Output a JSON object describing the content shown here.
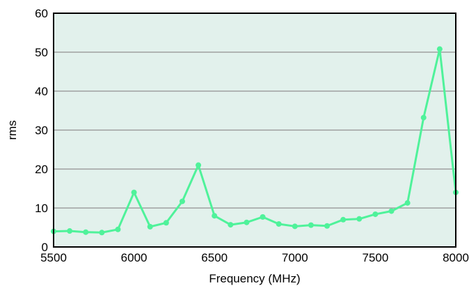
{
  "chart_data": {
    "type": "line",
    "title": "",
    "xlabel": "Frequency (MHz)",
    "ylabel": "rms",
    "xlim": [
      5500,
      8000
    ],
    "ylim": [
      0,
      60
    ],
    "xticks": [
      5500,
      6000,
      6500,
      7000,
      7500,
      8000
    ],
    "yticks": [
      0,
      10,
      20,
      30,
      40,
      50,
      60
    ],
    "grid": "horizontal",
    "series": [
      {
        "x": [
          5500,
          5600,
          5700,
          5800,
          5900,
          6000,
          6100,
          6200,
          6300,
          6400,
          6500,
          6600,
          6700,
          6800,
          6900,
          7000,
          7100,
          7200,
          7300,
          7400,
          7500,
          7600,
          7700,
          7800,
          7900,
          8000
        ],
        "y": [
          4.0,
          4.1,
          3.8,
          3.7,
          4.5,
          14.0,
          5.2,
          6.2,
          11.7,
          21.0,
          8.0,
          5.7,
          6.3,
          7.7,
          5.9,
          5.3,
          5.6,
          5.4,
          7.0,
          7.2,
          8.4,
          9.2,
          11.3,
          33.2,
          50.8,
          14.0
        ]
      }
    ],
    "colors": {
      "line": "#4ff29a",
      "plot_background": "#e2f1ec",
      "grid": "#a0a0a0",
      "frame": "#000000"
    }
  }
}
